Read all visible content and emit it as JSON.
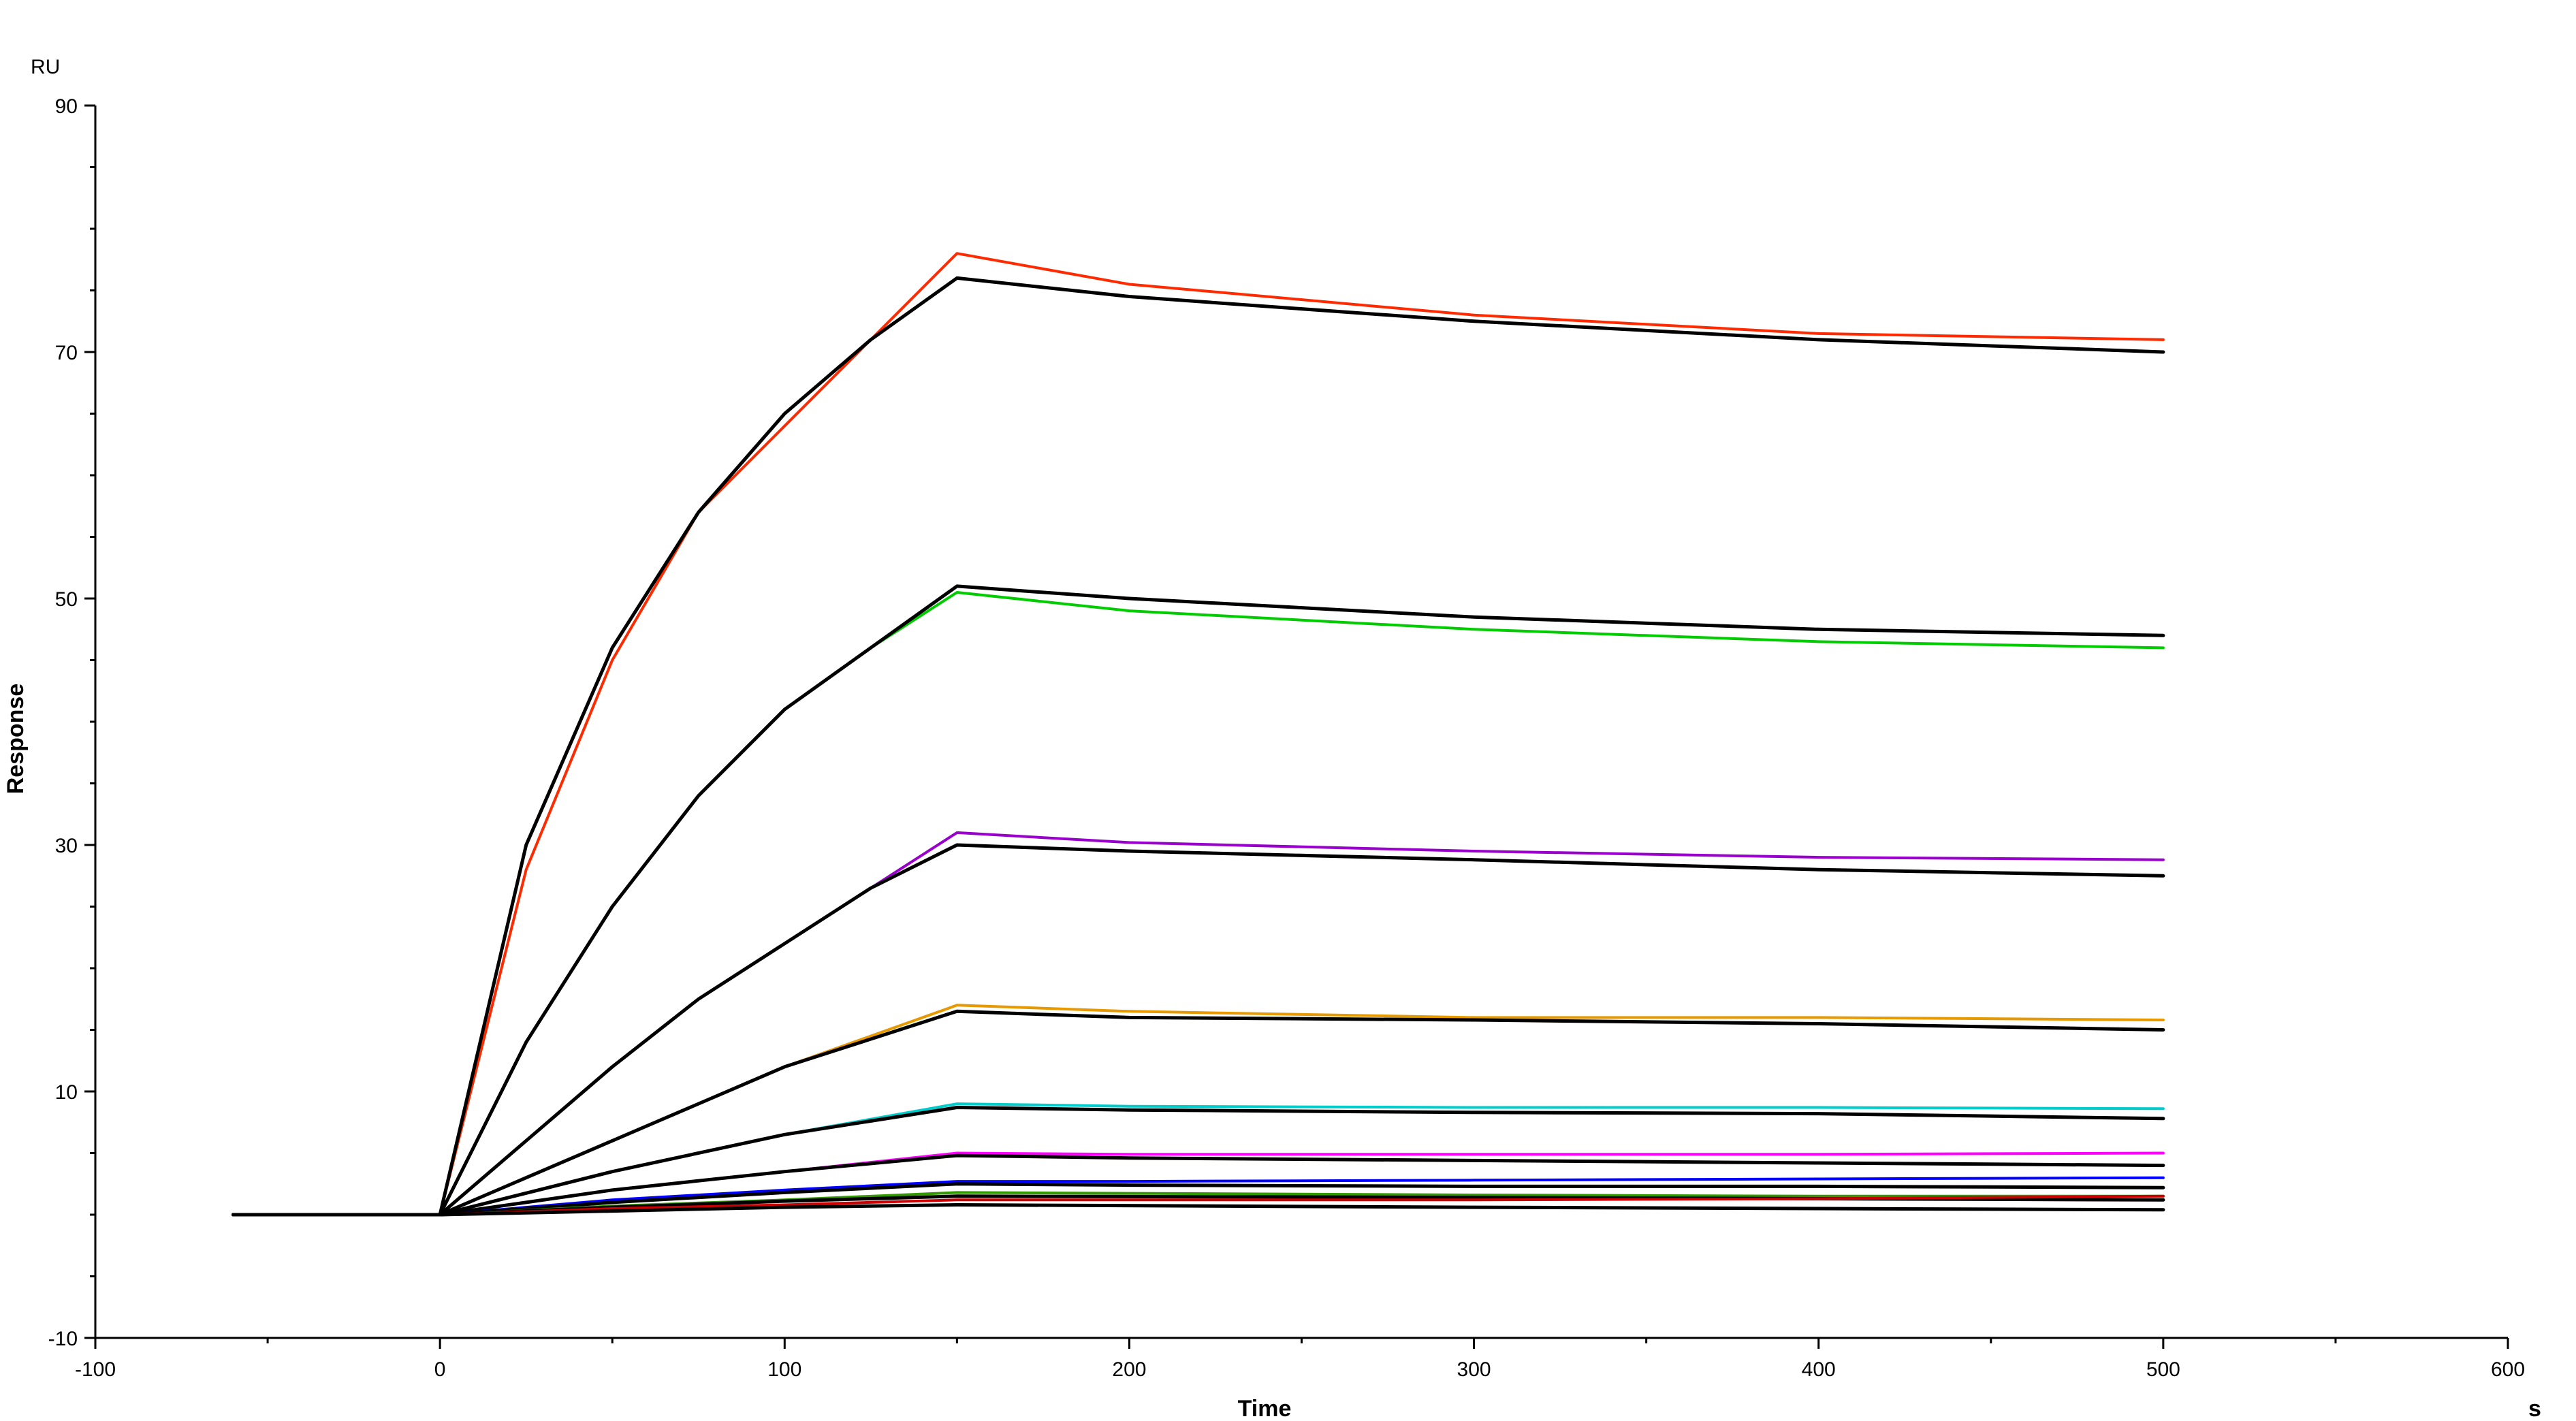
{
  "chart_data": {
    "type": "line",
    "title": "",
    "xlabel": "Time",
    "ylabel": "Response",
    "x_unit": "s",
    "y_unit": "RU",
    "xlim": [
      -100,
      600
    ],
    "ylim": [
      -10,
      90
    ],
    "x_ticks": [
      -100,
      0,
      100,
      200,
      300,
      400,
      500,
      600
    ],
    "y_ticks": [
      -10,
      10,
      30,
      50,
      70,
      90
    ],
    "grid": false,
    "legend": "none",
    "series": [
      {
        "color": "#ff2a00",
        "points": [
          [
            -60,
            0
          ],
          [
            0,
            0
          ],
          [
            25,
            28
          ],
          [
            50,
            45
          ],
          [
            75,
            57
          ],
          [
            100,
            64
          ],
          [
            125,
            71
          ],
          [
            150,
            78
          ],
          [
            200,
            75.5
          ],
          [
            300,
            73
          ],
          [
            400,
            71.5
          ],
          [
            500,
            71
          ]
        ]
      },
      {
        "color": "#000000",
        "points": [
          [
            -60,
            0
          ],
          [
            0,
            0
          ],
          [
            25,
            30
          ],
          [
            50,
            46
          ],
          [
            75,
            57
          ],
          [
            100,
            65
          ],
          [
            125,
            71
          ],
          [
            150,
            76
          ],
          [
            200,
            74.5
          ],
          [
            300,
            72.5
          ],
          [
            400,
            71
          ],
          [
            500,
            70
          ]
        ]
      },
      {
        "color": "#00cc00",
        "points": [
          [
            -60,
            0
          ],
          [
            0,
            0
          ],
          [
            25,
            14
          ],
          [
            50,
            25
          ],
          [
            75,
            34
          ],
          [
            100,
            41
          ],
          [
            125,
            46
          ],
          [
            150,
            50.5
          ],
          [
            200,
            49
          ],
          [
            300,
            47.5
          ],
          [
            400,
            46.5
          ],
          [
            500,
            46
          ]
        ]
      },
      {
        "color": "#000000",
        "points": [
          [
            -60,
            0
          ],
          [
            0,
            0
          ],
          [
            25,
            14
          ],
          [
            50,
            25
          ],
          [
            75,
            34
          ],
          [
            100,
            41
          ],
          [
            125,
            46
          ],
          [
            150,
            51
          ],
          [
            200,
            50
          ],
          [
            300,
            48.5
          ],
          [
            400,
            47.5
          ],
          [
            500,
            47
          ]
        ]
      },
      {
        "color": "#9900cc",
        "points": [
          [
            -60,
            0
          ],
          [
            0,
            0
          ],
          [
            25,
            6
          ],
          [
            50,
            12
          ],
          [
            75,
            17.5
          ],
          [
            100,
            22
          ],
          [
            125,
            26.5
          ],
          [
            150,
            31
          ],
          [
            200,
            30.2
          ],
          [
            300,
            29.5
          ],
          [
            400,
            29
          ],
          [
            500,
            28.8
          ]
        ]
      },
      {
        "color": "#000000",
        "points": [
          [
            -60,
            0
          ],
          [
            0,
            0
          ],
          [
            25,
            6
          ],
          [
            50,
            12
          ],
          [
            75,
            17.5
          ],
          [
            100,
            22
          ],
          [
            125,
            26.5
          ],
          [
            150,
            30
          ],
          [
            200,
            29.5
          ],
          [
            300,
            28.8
          ],
          [
            400,
            28
          ],
          [
            500,
            27.5
          ]
        ]
      },
      {
        "color": "#e69900",
        "points": [
          [
            -60,
            0
          ],
          [
            0,
            0
          ],
          [
            50,
            6
          ],
          [
            100,
            12
          ],
          [
            150,
            17
          ],
          [
            200,
            16.5
          ],
          [
            300,
            16
          ],
          [
            400,
            16
          ],
          [
            500,
            15.8
          ]
        ]
      },
      {
        "color": "#000000",
        "points": [
          [
            -60,
            0
          ],
          [
            0,
            0
          ],
          [
            50,
            6
          ],
          [
            100,
            12
          ],
          [
            150,
            16.5
          ],
          [
            200,
            16
          ],
          [
            300,
            15.8
          ],
          [
            400,
            15.5
          ],
          [
            500,
            15
          ]
        ]
      },
      {
        "color": "#00cccc",
        "points": [
          [
            -60,
            0
          ],
          [
            0,
            0
          ],
          [
            50,
            3.5
          ],
          [
            100,
            6.5
          ],
          [
            150,
            9
          ],
          [
            200,
            8.8
          ],
          [
            300,
            8.7
          ],
          [
            400,
            8.7
          ],
          [
            500,
            8.6
          ]
        ]
      },
      {
        "color": "#000000",
        "points": [
          [
            -60,
            0
          ],
          [
            0,
            0
          ],
          [
            50,
            3.5
          ],
          [
            100,
            6.5
          ],
          [
            150,
            8.7
          ],
          [
            200,
            8.5
          ],
          [
            300,
            8.3
          ],
          [
            400,
            8.2
          ],
          [
            500,
            7.8
          ]
        ]
      },
      {
        "color": "#ff00ff",
        "points": [
          [
            -60,
            0
          ],
          [
            0,
            0
          ],
          [
            50,
            2
          ],
          [
            100,
            3.5
          ],
          [
            150,
            5
          ],
          [
            200,
            4.9
          ],
          [
            300,
            4.9
          ],
          [
            400,
            4.9
          ],
          [
            500,
            5
          ]
        ]
      },
      {
        "color": "#000000",
        "points": [
          [
            -60,
            0
          ],
          [
            0,
            0
          ],
          [
            50,
            2
          ],
          [
            100,
            3.5
          ],
          [
            150,
            4.8
          ],
          [
            200,
            4.6
          ],
          [
            300,
            4.4
          ],
          [
            400,
            4.2
          ],
          [
            500,
            4
          ]
        ]
      },
      {
        "color": "#0000ff",
        "points": [
          [
            -60,
            0
          ],
          [
            0,
            0
          ],
          [
            50,
            1.2
          ],
          [
            100,
            2
          ],
          [
            150,
            2.7
          ],
          [
            200,
            2.7
          ],
          [
            300,
            2.8
          ],
          [
            400,
            2.9
          ],
          [
            500,
            3
          ]
        ]
      },
      {
        "color": "#000000",
        "points": [
          [
            -60,
            0
          ],
          [
            0,
            0
          ],
          [
            50,
            1
          ],
          [
            100,
            1.8
          ],
          [
            150,
            2.5
          ],
          [
            200,
            2.4
          ],
          [
            300,
            2.3
          ],
          [
            400,
            2.3
          ],
          [
            500,
            2.2
          ]
        ]
      },
      {
        "color": "#339900",
        "points": [
          [
            -60,
            0
          ],
          [
            0,
            0
          ],
          [
            50,
            0.7
          ],
          [
            100,
            1.2
          ],
          [
            150,
            1.8
          ],
          [
            300,
            1.6
          ],
          [
            400,
            1.5
          ],
          [
            500,
            1.5
          ]
        ]
      },
      {
        "color": "#000000",
        "points": [
          [
            -60,
            0
          ],
          [
            0,
            0
          ],
          [
            50,
            0.6
          ],
          [
            100,
            1.1
          ],
          [
            150,
            1.5
          ],
          [
            300,
            1.4
          ],
          [
            400,
            1.3
          ],
          [
            500,
            1.2
          ]
        ]
      },
      {
        "color": "#cc0000",
        "points": [
          [
            -60,
            0
          ],
          [
            0,
            0
          ],
          [
            50,
            0.5
          ],
          [
            100,
            0.8
          ],
          [
            150,
            1.2
          ],
          [
            300,
            1.2
          ],
          [
            400,
            1.3
          ],
          [
            500,
            1.5
          ]
        ]
      },
      {
        "color": "#000000",
        "points": [
          [
            -60,
            0
          ],
          [
            0,
            0
          ],
          [
            50,
            0.3
          ],
          [
            100,
            0.6
          ],
          [
            150,
            0.8
          ],
          [
            300,
            0.6
          ],
          [
            400,
            0.5
          ],
          [
            500,
            0.4
          ]
        ]
      }
    ]
  }
}
